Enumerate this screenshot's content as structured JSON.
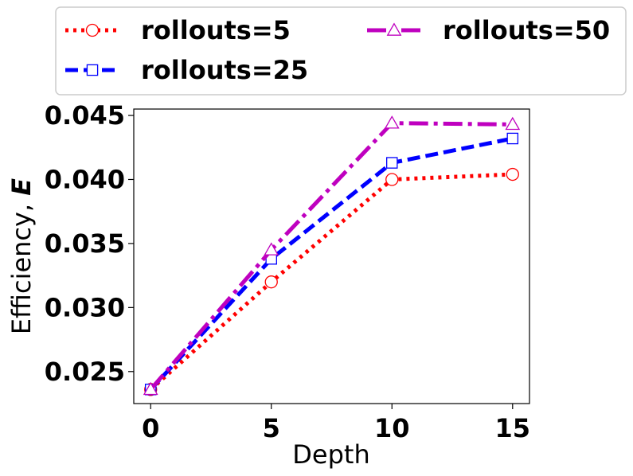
{
  "chart_data": {
    "type": "line",
    "xlabel": "Depth",
    "ylabel_prefix": "Efficiency, ",
    "ylabel_symbol": "E",
    "x": [
      0,
      5,
      10,
      15
    ],
    "x_ticks": [
      "0",
      "5",
      "10",
      "15"
    ],
    "y_ticks": [
      "0.025",
      "0.030",
      "0.035",
      "0.040",
      "0.045"
    ],
    "y_tick_values": [
      0.025,
      0.03,
      0.035,
      0.04,
      0.045
    ],
    "xlim": [
      -0.7,
      15.7
    ],
    "ylim": [
      0.0225,
      0.0455
    ],
    "grid": false,
    "legend_position": "top",
    "series": [
      {
        "name": "rollouts=5",
        "values": [
          0.0236,
          0.032,
          0.04,
          0.0404
        ],
        "color": "#ff0000",
        "dash": "dotted",
        "marker": "circle"
      },
      {
        "name": "rollouts=25",
        "values": [
          0.0236,
          0.0338,
          0.0413,
          0.0432
        ],
        "color": "#0000ff",
        "dash": "dashed",
        "marker": "square"
      },
      {
        "name": "rollouts=50",
        "values": [
          0.0236,
          0.0345,
          0.0444,
          0.0443
        ],
        "color": "#bf00bf",
        "dash": "dashdot",
        "marker": "triangle"
      }
    ]
  }
}
